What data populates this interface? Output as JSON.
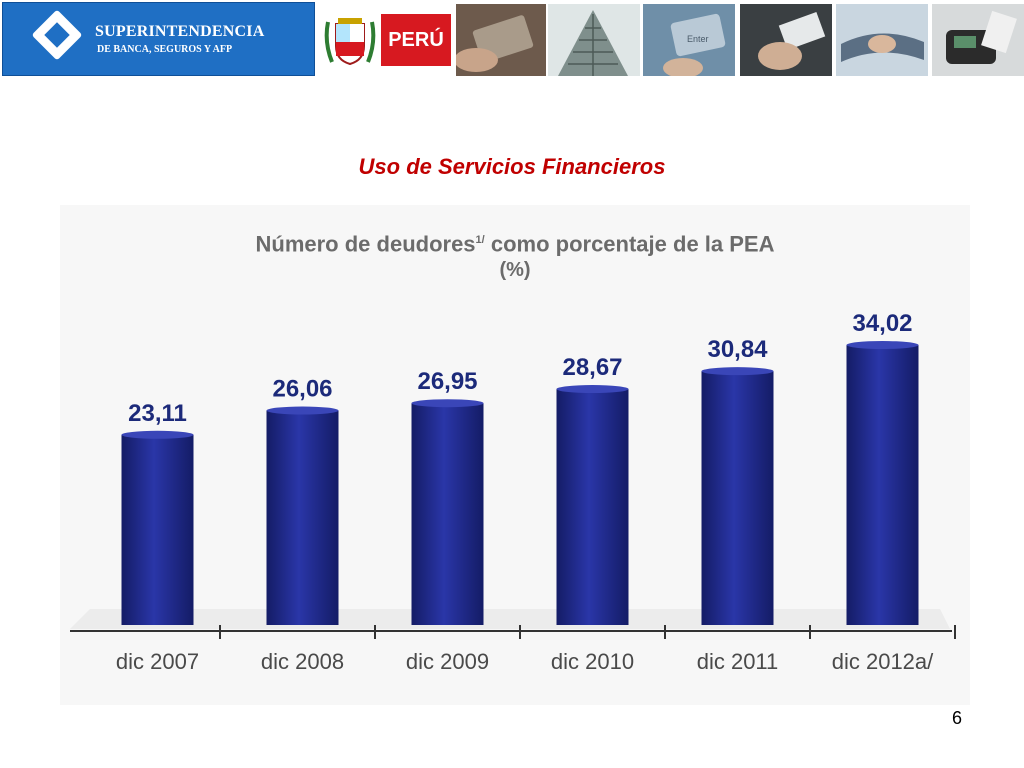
{
  "header": {
    "logo_name": "SUPERINTENDENCIA",
    "logo_sub": "DE BANCA, SEGUROS Y AFP",
    "country_brand": "PERÚ",
    "photos": [
      "credit-card-photo",
      "building-photo",
      "keyboard-enter-photo",
      "hand-cards-photo",
      "handshake-photo",
      "pen-document-photo",
      "card-terminal-photo"
    ]
  },
  "slide": {
    "title": "Uso de Servicios Financieros",
    "page_number": "6"
  },
  "colors": {
    "title_red": "#c00000",
    "bar_blue": "#1e2b8f",
    "label_blue": "#1c2a7a",
    "logo_blue": "#1f6fc4",
    "peru_red": "#d71920"
  },
  "chart_data": {
    "type": "bar",
    "title": "Número de deudores",
    "title_sup": "1/",
    "title_rest": " como porcentaje de la PEA",
    "subtitle": "(%)",
    "categories": [
      "dic 2007",
      "dic 2008",
      "dic 2009",
      "dic 2010",
      "dic 2011",
      "dic 2012a/"
    ],
    "values": [
      23.11,
      26.06,
      26.95,
      28.67,
      30.84,
      34.02
    ],
    "value_labels": [
      "23,11",
      "26,06",
      "26,95",
      "28,67",
      "30,84",
      "34,02"
    ],
    "ylim": [
      0,
      34.02
    ],
    "grid": false,
    "legend": "none"
  }
}
